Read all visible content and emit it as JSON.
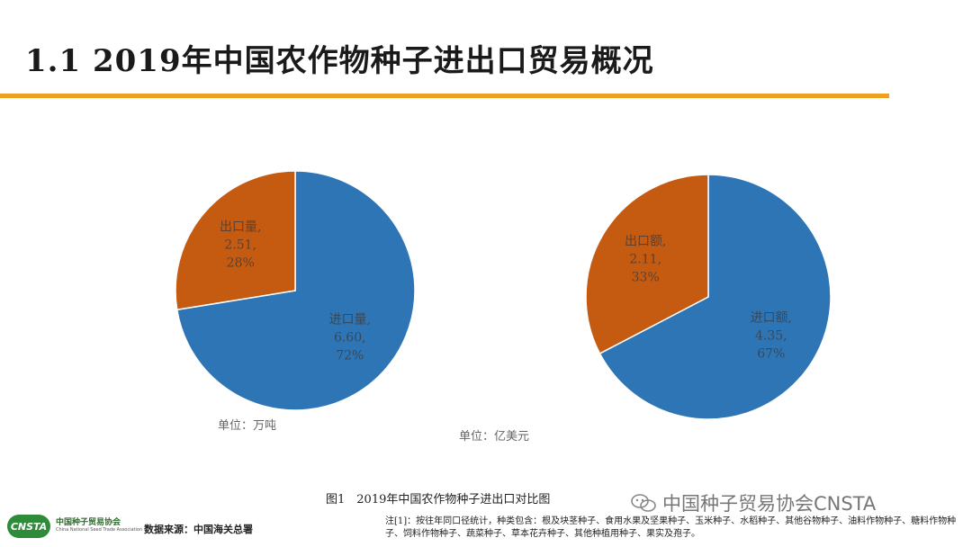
{
  "page": {
    "title": "1.1 2019年中国农作物种子进出口贸易概况",
    "accent_color": "#f0a020"
  },
  "chart_data": [
    {
      "type": "pie",
      "unit_label": "单位：万吨",
      "slices": [
        {
          "name": "进口量",
          "value": 6.6,
          "percent": "72%",
          "color": "#2e75b6",
          "label_lines": [
            "进口量,",
            "6.60,",
            "72%"
          ]
        },
        {
          "name": "出口量",
          "value": 2.51,
          "percent": "28%",
          "color": "#c55a11",
          "label_lines": [
            "出口量,",
            "2.51,",
            "28%"
          ]
        }
      ]
    },
    {
      "type": "pie",
      "unit_label": "单位：亿美元",
      "slices": [
        {
          "name": "进口额",
          "value": 4.35,
          "percent": "67%",
          "color": "#2e75b6",
          "label_lines": [
            "进口额,",
            "4.35,",
            "67%"
          ]
        },
        {
          "name": "出口额",
          "value": 2.11,
          "percent": "33%",
          "color": "#c55a11",
          "label_lines": [
            "出口额,",
            "2.11,",
            "33%"
          ]
        }
      ]
    }
  ],
  "caption": "图1　2019年中国农作物种子进出口对比图",
  "watermark": "中国种子贸易协会CNSTA",
  "logo": {
    "mark": "CNSTA",
    "name_cn": "中国种子贸易协会",
    "name_en": "China National Seed Trade Association"
  },
  "source": "数据来源：中国海关总署",
  "note": "注[1]：按往年同口径统计，种类包含：根及块茎种子、食用水果及坚果种子、玉米种子、水稻种子、其他谷物种子、油料作物种子、糖料作物种子、饲料作物种子、蔬菜种子、草本花卉种子、其他种植用种子、果实及孢子。"
}
